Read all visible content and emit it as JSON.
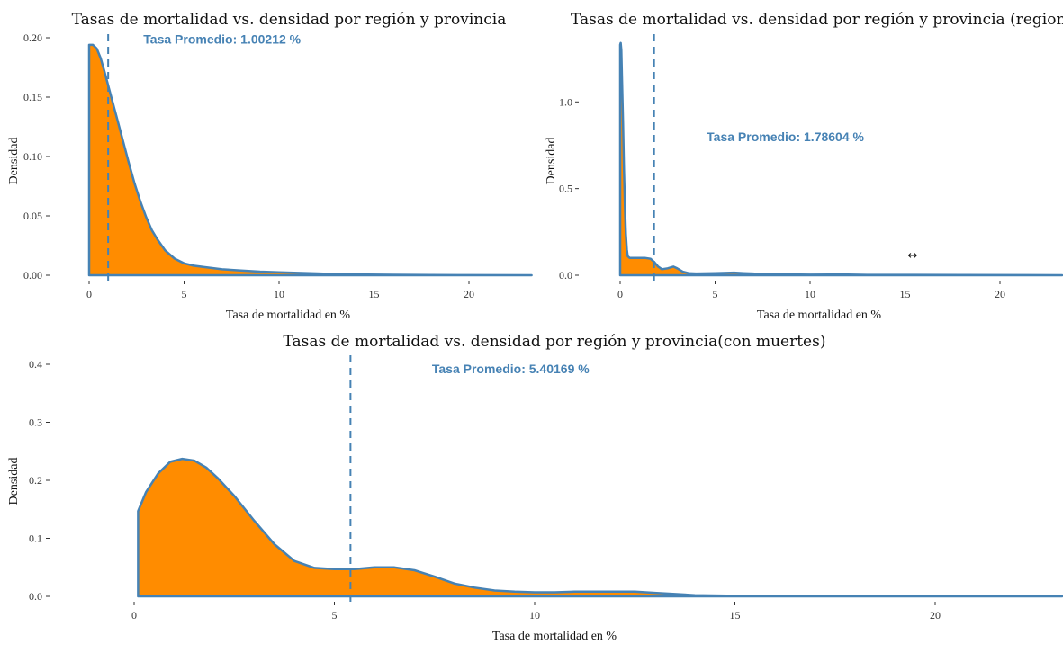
{
  "colors": {
    "fill": "#ff8c00",
    "stroke": "#4682b4",
    "mean_line": "#4682b4",
    "annotation": "#4682b4",
    "axis": "#333333"
  },
  "cursor_icon": "↔",
  "chart_data": [
    {
      "type": "area",
      "title": "Tasas de mortalidad vs. densidad por región y provincia",
      "xlabel": "Tasa de mortalidad en %",
      "ylabel": "Densidad",
      "xlim": [
        -0.1,
        23.3
      ],
      "ylim": [
        0,
        0.2
      ],
      "x_ticks": [
        0,
        5,
        10,
        15,
        20
      ],
      "x_tick_labels": [
        "0",
        "5",
        "10",
        "15",
        "20"
      ],
      "y_ticks": [
        0,
        0.05,
        0.1,
        0.15,
        0.2
      ],
      "y_tick_labels": [
        "0.00",
        "0.05",
        "0.10",
        "0.15",
        "0.20"
      ],
      "mean": 1.00212,
      "annotation": "Tasa Promedio: 1.00212 %",
      "annotation_x": 7,
      "annotation_y": 0.199,
      "x": [
        0,
        0.2,
        0.4,
        0.6,
        0.8,
        1.0,
        1.2,
        1.5,
        1.8,
        2.1,
        2.4,
        2.7,
        3.0,
        3.3,
        3.6,
        4.0,
        4.5,
        5.0,
        5.5,
        6.0,
        7.0,
        8.0,
        9.0,
        10.0,
        11.0,
        12.0,
        13.0,
        14.0,
        16.0,
        18.0,
        20.0,
        23.3
      ],
      "y": [
        0.194,
        0.194,
        0.191,
        0.183,
        0.172,
        0.16,
        0.148,
        0.13,
        0.112,
        0.094,
        0.077,
        0.062,
        0.049,
        0.038,
        0.03,
        0.021,
        0.014,
        0.01,
        0.008,
        0.007,
        0.005,
        0.004,
        0.003,
        0.0025,
        0.002,
        0.0015,
        0.001,
        0.0007,
        0.0004,
        0.0002,
        0.0001,
        0
      ]
    },
    {
      "type": "area",
      "title": "Tasas de mortalidad vs. densidad por región y provincia (regiones con casos",
      "xlabel": "Tasa de mortalidad en %",
      "ylabel": "Densidad",
      "xlim": [
        -0.1,
        23.3
      ],
      "ylim": [
        0,
        1.37
      ],
      "x_ticks": [
        0,
        5,
        10,
        15,
        20
      ],
      "x_tick_labels": [
        "0",
        "5",
        "10",
        "15",
        "20"
      ],
      "y_ticks": [
        0,
        0.5,
        1.0
      ],
      "y_tick_labels": [
        "0.0",
        "0.5",
        "1.0"
      ],
      "mean": 1.78604,
      "annotation": "Tasa Promedio: 1.78604 %",
      "annotation_x": 8.7,
      "annotation_y": 0.8,
      "x": [
        0,
        0.03,
        0.06,
        0.1,
        0.15,
        0.2,
        0.25,
        0.3,
        0.35,
        0.4,
        0.5,
        0.6,
        0.8,
        1.0,
        1.3,
        1.6,
        1.8,
        2.0,
        2.2,
        2.5,
        2.8,
        3.0,
        3.3,
        3.6,
        4.0,
        5.0,
        6.0,
        6.5,
        7.0,
        7.5,
        8.0,
        9.0,
        10.0,
        11.0,
        12.0,
        13.0,
        15.0,
        18.0,
        23.3
      ],
      "y": [
        1.33,
        1.34,
        1.3,
        1.12,
        0.88,
        0.62,
        0.4,
        0.24,
        0.15,
        0.11,
        0.1,
        0.1,
        0.1,
        0.1,
        0.1,
        0.095,
        0.075,
        0.05,
        0.035,
        0.04,
        0.05,
        0.04,
        0.02,
        0.012,
        0.01,
        0.012,
        0.015,
        0.012,
        0.01,
        0.005,
        0.004,
        0.004,
        0.003,
        0.004,
        0.004,
        0.002,
        0.002,
        0.001,
        0
      ]
    },
    {
      "type": "area",
      "title": "Tasas de mortalidad vs. densidad por región y provincia(con muertes)",
      "xlabel": "Tasa de mortalidad en %",
      "ylabel": "Densidad",
      "xlim": [
        -0.75,
        23.3
      ],
      "ylim": [
        0,
        0.4
      ],
      "x_ticks": [
        0,
        5,
        10,
        15,
        20
      ],
      "x_tick_labels": [
        "0",
        "5",
        "10",
        "15",
        "20"
      ],
      "y_ticks": [
        0,
        0.1,
        0.2,
        0.3,
        0.4
      ],
      "y_tick_labels": [
        "0.0",
        "0.1",
        "0.2",
        "0.3",
        "0.4"
      ],
      "mean": 5.40169,
      "annotation": "Tasa Promedio: 5.40169 %",
      "annotation_x": 9.4,
      "annotation_y": 0.392,
      "x": [
        0.1,
        0.3,
        0.6,
        0.9,
        1.2,
        1.5,
        1.8,
        2.1,
        2.5,
        3.0,
        3.5,
        4.0,
        4.5,
        5.0,
        5.5,
        6.0,
        6.5,
        7.0,
        7.5,
        8.0,
        8.5,
        9.0,
        9.5,
        10.0,
        10.5,
        11.0,
        11.5,
        12.0,
        12.5,
        13.0,
        13.5,
        14.0,
        15.0,
        17.0,
        20.0,
        23.3
      ],
      "y": [
        0.147,
        0.18,
        0.212,
        0.232,
        0.237,
        0.234,
        0.222,
        0.203,
        0.173,
        0.13,
        0.09,
        0.061,
        0.049,
        0.047,
        0.047,
        0.05,
        0.05,
        0.045,
        0.034,
        0.022,
        0.015,
        0.01,
        0.008,
        0.007,
        0.007,
        0.008,
        0.008,
        0.008,
        0.008,
        0.006,
        0.004,
        0.002,
        0.001,
        0.0004,
        0.0001,
        0
      ]
    }
  ]
}
